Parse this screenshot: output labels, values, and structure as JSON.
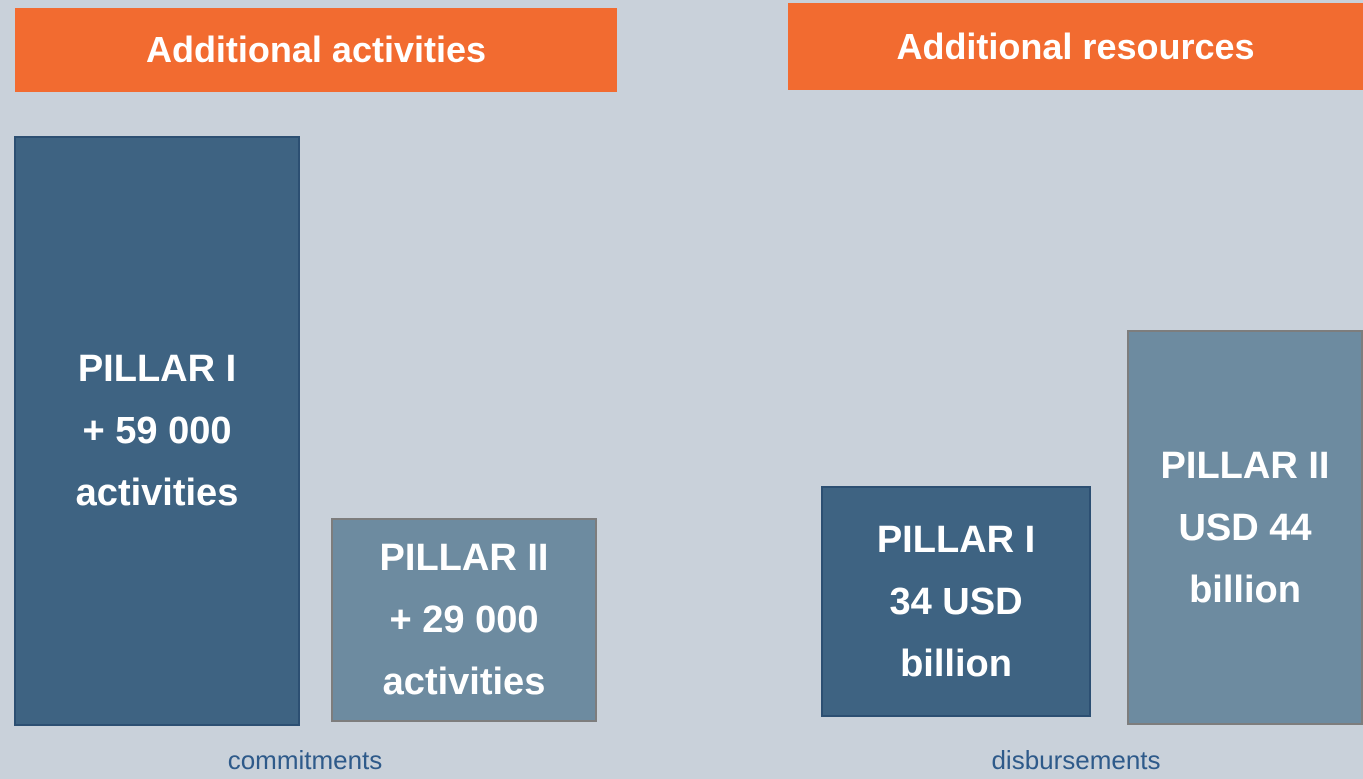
{
  "panels": [
    {
      "title": "Additional activities",
      "caption": "commitments",
      "boxes": [
        {
          "lines": [
            "PILLAR I",
            "+ 59 000",
            "activities"
          ]
        },
        {
          "lines": [
            "PILLAR II",
            "+ 29 000",
            "activities"
          ]
        }
      ]
    },
    {
      "title": "Additional resources",
      "caption": "disbursements",
      "boxes": [
        {
          "lines": [
            "PILLAR I",
            "34  USD",
            "billion"
          ]
        },
        {
          "lines": [
            "PILLAR II",
            "USD 44",
            "billion"
          ]
        }
      ]
    }
  ]
}
